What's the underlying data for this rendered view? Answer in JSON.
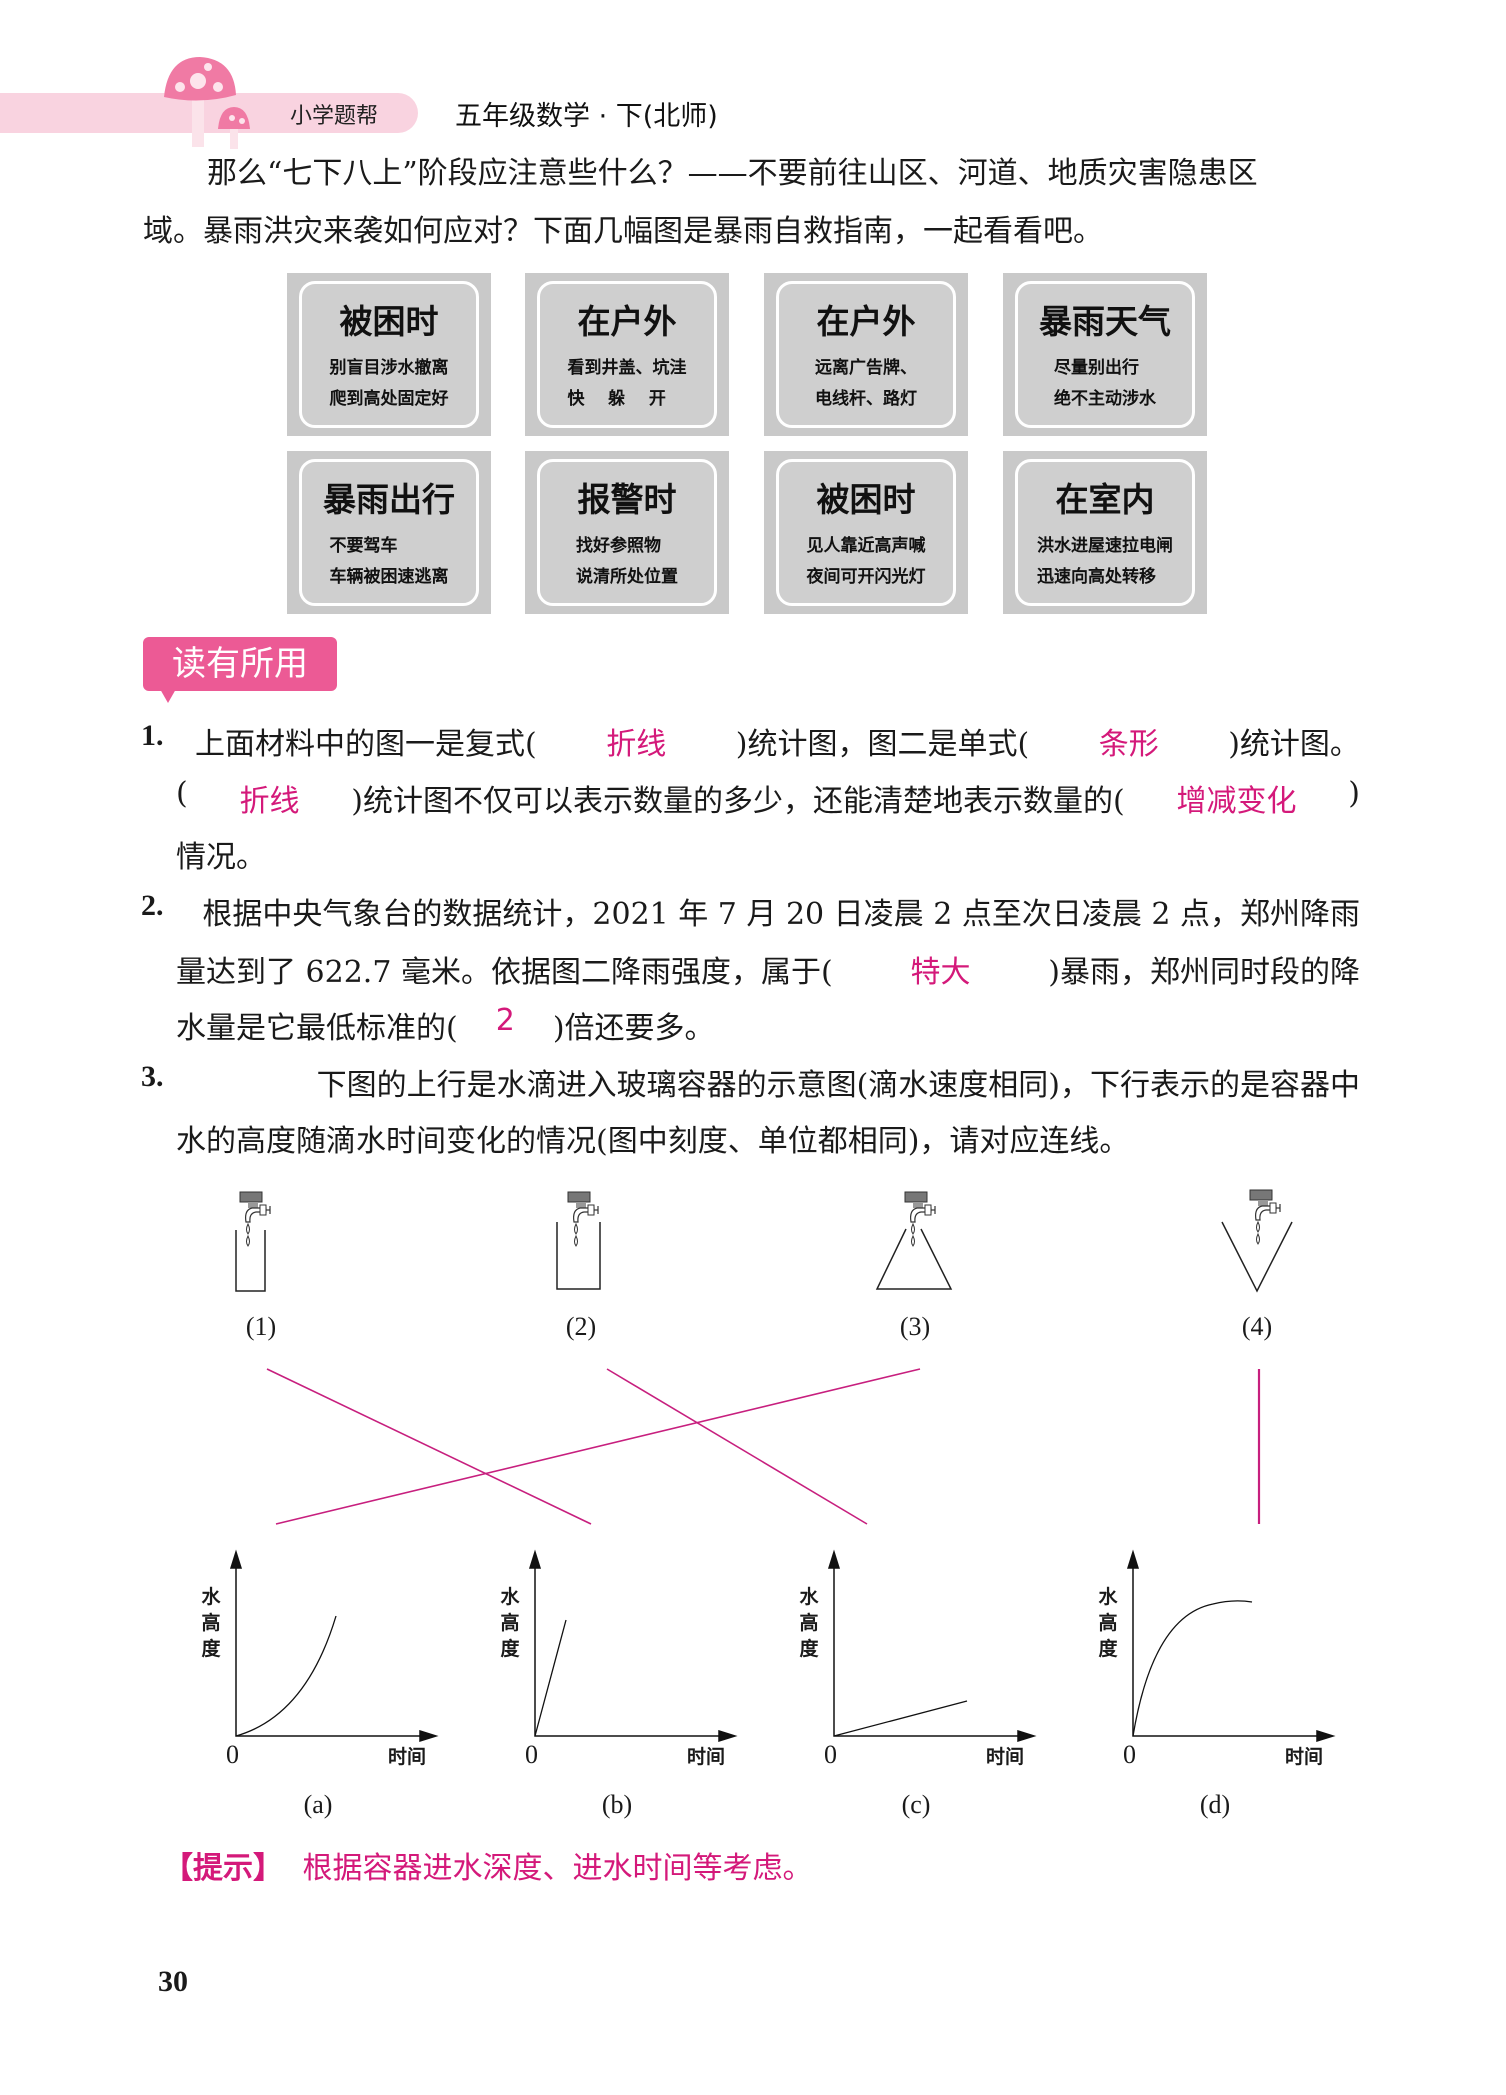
{
  "header": {
    "brand": "小学题帮",
    "book_title": "五年级数学 · 下(北师)",
    "accent": "#f9d3e0"
  },
  "intro": {
    "line1": "那么“七下八上”阶段应注意些什么？——不要前往山区、河道、地质灾害隐患区",
    "line2": "域。暴雨洪灾来袭如何应对？下面几幅图是暴雨自救指南，一起看看吧。"
  },
  "cards": [
    {
      "title": "被困时",
      "sub": "别盲目涉水撤离\n爬到高处固定好"
    },
    {
      "title": "在户外",
      "sub": "看到井盖、坑洼\n快    躲    开"
    },
    {
      "title": "在户外",
      "sub": "远离广告牌、\n电线杆、路灯"
    },
    {
      "title": "暴雨天气",
      "sub": "尽量别出行\n绝不主动涉水"
    },
    {
      "title": "暴雨出行",
      "sub": "不要驾车\n车辆被困速逃离"
    },
    {
      "title": "报警时",
      "sub": "找好参照物\n说清所处位置"
    },
    {
      "title": "被困时",
      "sub": "见人靠近高声喊\n夜间可开闪光灯"
    },
    {
      "title": "在室内",
      "sub": "洪水进屋速拉电闸\n迅速向高处转移"
    }
  ],
  "section_badge": "读有所用",
  "answer_color": "#d4197a",
  "questions": [
    {
      "lines": [
        [
          {
            "n": "1."
          },
          {
            "t": "上面材料中的图一是复式("
          },
          {
            "a": "折线"
          },
          {
            "t": ")统计图，图二是单式("
          },
          {
            "a": "条形"
          },
          {
            "t": ")统计图。"
          }
        ],
        [
          {
            "t": "("
          },
          {
            "a": "折线"
          },
          {
            "t": ")统计图不仅可以表示数量的多少，还能清楚地表示数量的("
          },
          {
            "a": "增减变化"
          },
          {
            "t": ")"
          }
        ],
        [
          {
            "t": "情况。"
          }
        ]
      ]
    },
    {
      "lines": [
        [
          {
            "n": "2."
          },
          {
            "t": "根据中央气象台的数据统计，2021 年 7 月 20 日凌晨 2 点至次日凌晨 2 点，郑州降雨"
          }
        ],
        [
          {
            "t": "量达到了 622.7 毫米。依据图二降雨强度，属于("
          },
          {
            "a": "特大"
          },
          {
            "t": ")暴雨，郑州同时段的降"
          }
        ],
        [
          {
            "t": "水量是它最低标准的("
          },
          {
            "a": "2"
          },
          {
            "t": ")倍还要多。"
          }
        ]
      ]
    },
    {
      "lines": [
        [
          {
            "n": "3."
          },
          {
            "t": "下图的上行是水滴进入玻璃容器的示意图(滴水速度相同)，下行表示的是容器中"
          }
        ],
        [
          {
            "t": "水的高度随滴水时间变化的情况(图中刻度、单位都相同)，请对应连线。"
          }
        ]
      ]
    }
  ],
  "containers": [
    "(1)",
    "(2)",
    "(3)",
    "(4)"
  ],
  "graphs": [
    {
      "label": "(a)",
      "y_axis": "水高度",
      "origin": "0",
      "x_axis": "时间"
    },
    {
      "label": "(b)",
      "y_axis": "水高度",
      "origin": "0",
      "x_axis": "时间"
    },
    {
      "label": "(c)",
      "y_axis": "水高度",
      "origin": "0",
      "x_axis": "时间"
    },
    {
      "label": "(d)",
      "y_axis": "水高度",
      "origin": "0",
      "x_axis": "时间"
    }
  ],
  "matches": [
    [
      "(1)",
      "(b)"
    ],
    [
      "(2)",
      "(c)"
    ],
    [
      "(3)",
      "(a)"
    ],
    [
      "(4)",
      "(d)"
    ]
  ],
  "hint": {
    "tag": "【提示】",
    "text": "根据容器进水深度、进水时间等考虑。"
  },
  "page_number": "30"
}
